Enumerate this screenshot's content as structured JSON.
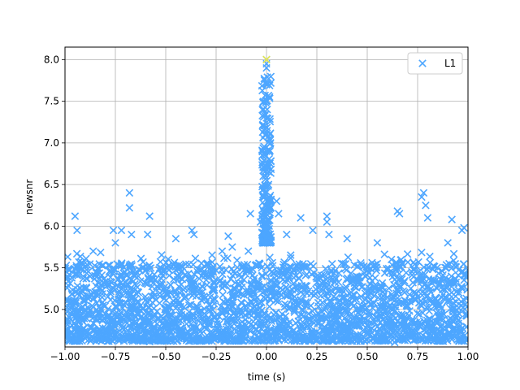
{
  "chart_data": {
    "type": "scatter",
    "xlabel": "time (s)",
    "ylabel": "newsnr",
    "xlim": [
      -1.0,
      1.0
    ],
    "ylim": [
      4.55,
      8.15
    ],
    "xticks": [
      "−1.00",
      "−0.75",
      "−0.50",
      "−0.25",
      "0.00",
      "0.25",
      "0.50",
      "0.75",
      "1.00"
    ],
    "xtick_values": [
      -1.0,
      -0.75,
      -0.5,
      -0.25,
      0.0,
      0.25,
      0.5,
      0.75,
      1.0
    ],
    "yticks": [
      "5.0",
      "5.5",
      "6.0",
      "6.5",
      "7.0",
      "7.5",
      "8.0"
    ],
    "ytick_values": [
      5.0,
      5.5,
      6.0,
      6.5,
      7.0,
      7.5,
      8.0
    ],
    "grid": true,
    "legend": {
      "position": "top-right",
      "entries": [
        {
          "label": "L1",
          "color": "#4da6ff",
          "marker": "x"
        }
      ]
    },
    "series": [
      {
        "name": "L1",
        "color": "#4da6ff",
        "marker": "x",
        "points": [
          [
            -0.95,
            6.12
          ],
          [
            -0.94,
            5.95
          ],
          [
            -0.86,
            5.7
          ],
          [
            -0.82,
            5.3
          ],
          [
            -0.76,
            5.95
          ],
          [
            -0.75,
            5.8
          ],
          [
            -0.72,
            5.95
          ],
          [
            -0.68,
            6.4
          ],
          [
            -0.68,
            6.22
          ],
          [
            -0.67,
            5.9
          ],
          [
            -0.58,
            6.12
          ],
          [
            -0.59,
            5.9
          ],
          [
            -0.53,
            5.5
          ],
          [
            -0.45,
            5.85
          ],
          [
            -0.37,
            5.95
          ],
          [
            -0.36,
            5.9
          ],
          [
            -0.22,
            5.7
          ],
          [
            -0.19,
            5.88
          ],
          [
            -0.17,
            5.75
          ],
          [
            -0.09,
            5.7
          ],
          [
            -0.08,
            6.15
          ],
          [
            -0.03,
            6.05
          ],
          [
            -0.02,
            6.2
          ],
          [
            0.0,
            8.0
          ],
          [
            0.0,
            7.95
          ],
          [
            0.0,
            7.9
          ],
          [
            0.0,
            7.7
          ],
          [
            0.0,
            7.5
          ],
          [
            0.0,
            7.3
          ],
          [
            0.0,
            7.1
          ],
          [
            0.0,
            6.9
          ],
          [
            0.005,
            6.7
          ],
          [
            -0.005,
            6.6
          ],
          [
            0.01,
            6.5
          ],
          [
            -0.01,
            6.4
          ],
          [
            0.02,
            6.3
          ],
          [
            0.05,
            6.3
          ],
          [
            0.06,
            6.15
          ],
          [
            0.1,
            5.9
          ],
          [
            0.17,
            6.1
          ],
          [
            0.23,
            5.95
          ],
          [
            0.3,
            6.12
          ],
          [
            0.3,
            6.05
          ],
          [
            0.31,
            5.9
          ],
          [
            0.4,
            5.85
          ],
          [
            0.55,
            5.8
          ],
          [
            0.55,
            5.55
          ],
          [
            0.62,
            5.6
          ],
          [
            0.65,
            6.18
          ],
          [
            0.66,
            6.15
          ],
          [
            0.77,
            6.35
          ],
          [
            0.78,
            6.4
          ],
          [
            0.79,
            6.25
          ],
          [
            0.8,
            6.1
          ],
          [
            0.9,
            5.8
          ],
          [
            0.92,
            6.08
          ],
          [
            0.97,
            5.95
          ],
          [
            0.98,
            5.98
          ],
          [
            -0.95,
            4.62
          ],
          [
            -0.5,
            4.65
          ],
          [
            0.15,
            4.68
          ],
          [
            0.5,
            4.7
          ],
          [
            0.86,
            4.62
          ],
          [
            -0.2,
            4.63
          ],
          [
            0.35,
            4.66
          ]
        ]
      },
      {
        "name": "",
        "color": "#e8e84a",
        "marker": "x",
        "points": [
          [
            0.0,
            8.0
          ]
        ]
      }
    ]
  }
}
